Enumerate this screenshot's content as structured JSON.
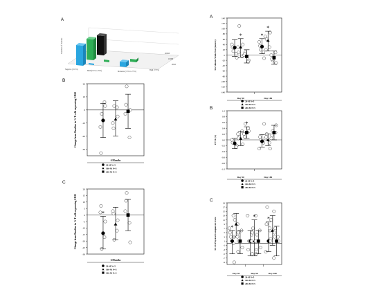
{
  "figure": {
    "panel_3d": {
      "letter": "A",
      "ylabel": "Number of Patients",
      "bar_labels": [
        "Negative (<0.5%)",
        "Mild (0.5% to 25%)",
        "Moderate (>25% to 75%)",
        "High (>75%)"
      ],
      "z_labels": [
        "200M",
        "100M",
        "20M"
      ],
      "bar_colors": [
        "#2aa6e0",
        "#2fae57",
        "#111111"
      ]
    }
  },
  "chart_data": [
    {
      "id": "walk",
      "type": "scatter",
      "letter": "A",
      "ylabel": "Six Minute Walk Test (meters)",
      "categories": [
        "Day 90",
        "Day 180"
      ],
      "ylim": [
        -140,
        140
      ],
      "yticks": [
        "140",
        "120",
        "100",
        "80",
        "60",
        "40",
        "20",
        "0",
        "-20",
        "-40",
        "-60",
        "-80",
        "-100",
        "-120",
        "-140"
      ],
      "series": [
        {
          "name": "20-M N=5",
          "mean": [
            28,
            32
          ],
          "lo": [
            -5,
            5
          ],
          "hi": [
            58,
            62
          ],
          "points": [
            [
              15,
              -10,
              40,
              5,
              30
            ],
            [
              20,
              -12,
              50,
              10,
              35
            ]
          ]
        },
        {
          "name": "100-M N=5",
          "mean": [
            30,
            55
          ],
          "lo": [
            -8,
            15
          ],
          "hi": [
            62,
            90
          ],
          "points": [
            [
              110,
              40,
              30,
              -5,
              10
            ],
            [
              60,
              85,
              70,
              30,
              20
            ]
          ]
        },
        {
          "name": "200-M N=5",
          "mean": [
            -5,
            -10
          ],
          "lo": [
            -30,
            -35
          ],
          "hi": [
            20,
            15
          ],
          "points": [
            [
              10,
              -20,
              0,
              -25,
              5
            ],
            [
              -20,
              -30,
              0,
              10,
              -15
            ]
          ]
        }
      ],
      "stars": [
        [
          0,
          1
        ],
        [
          1,
          0
        ],
        [
          1,
          1
        ]
      ],
      "legend": [
        "20-M N=5",
        "100-M N=5",
        "200-M N=5"
      ]
    },
    {
      "id": "fev1",
      "type": "scatter",
      "letter": "B",
      "ylabel": "FEV1 (L)",
      "categories": [
        "Day 90",
        "Day 180"
      ],
      "ylim": [
        -1.0,
        1.0
      ],
      "yticks": [
        "1.0",
        "0.8",
        "0.6",
        "0.4",
        "0.2",
        "0.0",
        "-0.2",
        "-0.4",
        "-0.6",
        "-0.8",
        "-1.0"
      ],
      "series": [
        {
          "name": "20-M N=5",
          "mean": [
            -0.12,
            -0.05
          ],
          "lo": [
            -0.3,
            -0.25
          ],
          "hi": [
            0.05,
            0.18
          ],
          "points": [
            [
              -0.05,
              -0.2,
              0.0,
              -0.25,
              -0.1
            ],
            [
              0.0,
              0.55,
              -0.3,
              -0.1,
              0.1
            ]
          ]
        },
        {
          "name": "100-M N=5",
          "mean": [
            0.05,
            0.0
          ],
          "lo": [
            -0.2,
            -0.2
          ],
          "hi": [
            0.3,
            0.2
          ],
          "points": [
            [
              0.1,
              -0.15,
              0.2,
              0.3,
              0.05
            ],
            [
              0.2,
              -0.3,
              0.05,
              -0.1,
              0.1
            ]
          ]
        },
        {
          "name": "200-M N=5",
          "mean": [
            0.25,
            0.25
          ],
          "lo": [
            0.05,
            0.0
          ],
          "hi": [
            0.45,
            0.5
          ],
          "points": [
            [
              0.55,
              0.3,
              0.2,
              0.4,
              0.1
            ],
            [
              0.3,
              0.5,
              0.05,
              0.25,
              0.15
            ]
          ]
        }
      ],
      "stars": [
        [
          0,
          2
        ]
      ],
      "legend": [
        "20-M N=5",
        "100-M N=5",
        "200-M N=5"
      ]
    },
    {
      "id": "sf36",
      "type": "scatter",
      "letter": "C",
      "ylabel": "SF-36 Physical Component Score",
      "categories": [
        "Day 30",
        "Day 90",
        "Day 180"
      ],
      "ylim": [
        -10,
        19
      ],
      "yticks": [
        "19",
        "17",
        "15",
        "13",
        "11",
        "9",
        "7",
        "5",
        "3",
        "1",
        "-1",
        "-3",
        "-5",
        "-7",
        "-9"
      ],
      "series": [
        {
          "name": "20-M N=5",
          "mean": [
            1,
            1,
            1
          ],
          "lo": [
            -5,
            -6,
            -4
          ],
          "hi": [
            6,
            6,
            10
          ],
          "points": [
            [
              3,
              -9,
              7,
              0,
              5
            ],
            [
              1,
              -5,
              13,
              4,
              -3
            ],
            [
              17,
              2,
              -4,
              6,
              9
            ]
          ]
        },
        {
          "name": "100-M N=5",
          "mean": [
            9,
            1,
            6
          ],
          "lo": [
            3,
            -6,
            -1
          ],
          "hi": [
            14,
            11,
            13
          ],
          "points": [
            [
              11,
              5,
              13,
              9,
              3
            ],
            [
              7,
              -3,
              1,
              13,
              5
            ],
            [
              11,
              3,
              7,
              15,
              1
            ]
          ]
        },
        {
          "name": "200-M N=5",
          "mean": [
            1,
            1,
            1
          ],
          "lo": [
            -5,
            -5,
            -6
          ],
          "hi": [
            6,
            6,
            8
          ],
          "points": [
            [
              1,
              -2,
              3,
              6,
              -4
            ],
            [
              4,
              -2,
              1,
              6,
              -5
            ],
            [
              7,
              1,
              -7,
              3,
              5
            ]
          ]
        }
      ],
      "stars": [
        [
          0,
          0
        ],
        [
          1,
          1
        ],
        [
          2,
          0
        ]
      ],
      "legend": [
        "20-M N=5",
        "100-M N=5",
        "200-M N=5"
      ]
    },
    {
      "id": "cd69",
      "type": "scatter",
      "letter": "B",
      "ylabel": "Change from Baseline in % T cells expressing CD69",
      "categories": [
        "6 Months"
      ],
      "ylim": [
        -35,
        20
      ],
      "yticks": [
        "20",
        "10",
        "0",
        "-10",
        "-20",
        "-30"
      ],
      "series": [
        {
          "name": "20-M N=5",
          "mean": [
            -8
          ],
          "lo": [
            -21
          ],
          "hi": [
            5
          ],
          "points": [
            [
              -3,
              3,
              -13,
              6,
              -33
            ]
          ]
        },
        {
          "name": "100-M N=5",
          "mean": [
            -7
          ],
          "lo": [
            -20
          ],
          "hi": [
            7
          ],
          "points": [
            [
              3,
              -5,
              -10,
              2,
              -14
            ]
          ]
        },
        {
          "name": "200-M N=5",
          "mean": [
            -1
          ],
          "lo": [
            -14
          ],
          "hi": [
            12
          ],
          "points": [
            [
              18,
              0,
              -3,
              -21,
              4
            ]
          ]
        }
      ],
      "stars": [],
      "legend": [
        "20-M N=5",
        "100-M N=5",
        "200-M N=5"
      ]
    },
    {
      "id": "cd25",
      "type": "scatter",
      "letter": "C",
      "ylabel": "Change from Baseline in % T cells expressing CD25",
      "categories": [
        "6 Months"
      ],
      "ylim": [
        -30,
        20
      ],
      "yticks": [
        "20",
        "15",
        "10",
        "5",
        "0",
        "-5",
        "-10",
        "-15",
        "-20",
        "-25",
        "-30"
      ],
      "series": [
        {
          "name": "20-M N=5",
          "mean": [
            -14
          ],
          "lo": [
            -26
          ],
          "hi": [
            -1
          ],
          "points": [
            [
              -26,
              -5,
              2,
              -17,
              7
            ]
          ]
        },
        {
          "name": "100-M N=5",
          "mean": [
            -7
          ],
          "lo": [
            -19
          ],
          "hi": [
            6
          ],
          "points": [
            [
              -19,
              -4,
              3,
              -12,
              1
            ]
          ]
        },
        {
          "name": "200-M N=5",
          "mean": [
            0
          ],
          "lo": [
            -12
          ],
          "hi": [
            12
          ],
          "points": [
            [
              17,
              -21,
              3,
              -6,
              11
            ]
          ]
        }
      ],
      "stars": [
        [
          0,
          0
        ]
      ],
      "legend": [
        "20-M N=5",
        "100-M N=5",
        "200-M N=5"
      ]
    }
  ]
}
